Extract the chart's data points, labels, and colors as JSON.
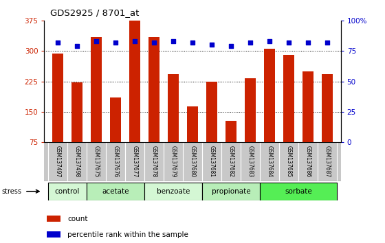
{
  "title": "GDS2925 / 8701_at",
  "samples": [
    "GSM137497",
    "GSM137498",
    "GSM137675",
    "GSM137676",
    "GSM137677",
    "GSM137678",
    "GSM137679",
    "GSM137680",
    "GSM137681",
    "GSM137682",
    "GSM137683",
    "GSM137684",
    "GSM137685",
    "GSM137686",
    "GSM137687"
  ],
  "counts": [
    293,
    222,
    335,
    185,
    375,
    335,
    243,
    163,
    224,
    128,
    233,
    305,
    290,
    250,
    243
  ],
  "percentile": [
    82,
    79,
    83,
    82,
    83,
    82,
    83,
    82,
    80,
    79,
    82,
    83,
    82,
    82,
    82
  ],
  "groups": [
    {
      "label": "control",
      "start": 0,
      "end": 2,
      "color": "#d4f7d4"
    },
    {
      "label": "acetate",
      "start": 2,
      "end": 5,
      "color": "#b8eeb8"
    },
    {
      "label": "benzoate",
      "start": 5,
      "end": 8,
      "color": "#d4f7d4"
    },
    {
      "label": "propionate",
      "start": 8,
      "end": 11,
      "color": "#b8eeb8"
    },
    {
      "label": "sorbate",
      "start": 11,
      "end": 15,
      "color": "#55ee55"
    }
  ],
  "stress_label": "stress",
  "ylim_left": [
    75,
    375
  ],
  "yticks_left": [
    75,
    150,
    225,
    300,
    375
  ],
  "ylim_right": [
    0,
    100
  ],
  "yticks_right": [
    0,
    25,
    50,
    75,
    100
  ],
  "bar_color": "#cc2200",
  "dot_color": "#0000cc",
  "bar_width": 0.55,
  "background_color": "#ffffff",
  "plot_bg_color": "#ffffff",
  "tick_area_bg": "#c8c8c8",
  "legend_count_color": "#cc2200",
  "legend_pct_color": "#0000cc",
  "gridline_values": [
    150,
    225,
    300
  ],
  "left_axis_color": "#cc2200",
  "right_axis_color": "#0000cc"
}
